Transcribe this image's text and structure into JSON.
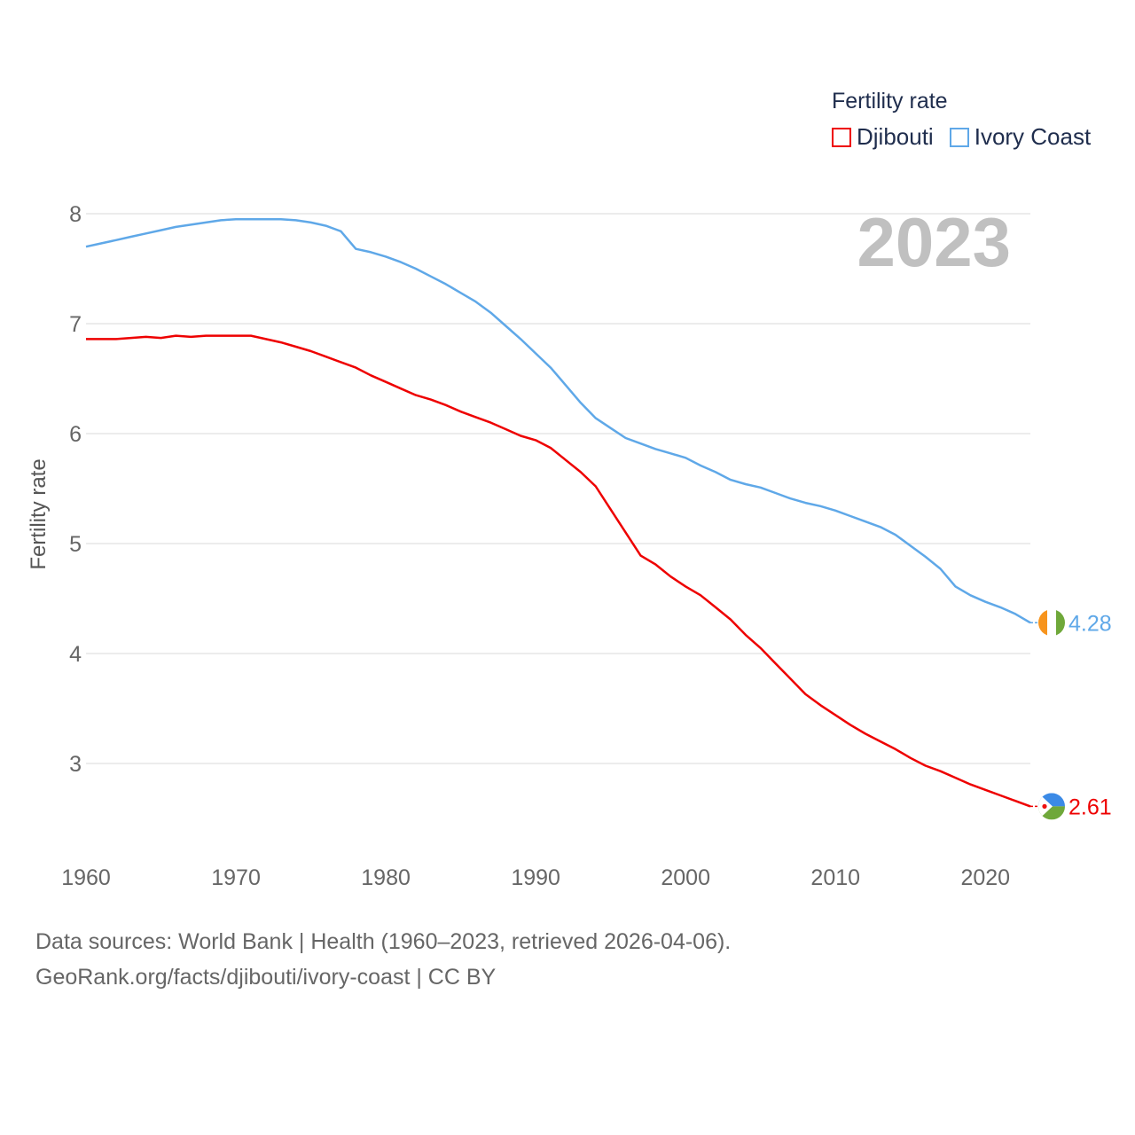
{
  "colors": {
    "djibouti": "#ee0000",
    "ivory_coast": "#5fa8e8",
    "grid": "#e6e6e6",
    "axis_text": "#666666",
    "year_text": "#c0c0c0"
  },
  "legend": {
    "title": "Fertility rate",
    "items": [
      {
        "label": "Djibouti",
        "color": "#ee0000"
      },
      {
        "label": "Ivory Coast",
        "color": "#5fa8e8"
      }
    ]
  },
  "year_label": "2023",
  "footer": {
    "line1": "Data sources: World Bank | Health (1960–2023, retrieved 2026-04-06).",
    "line2": "GeoRank.org/facts/djibouti/ivory-coast | CC BY"
  },
  "chart_data": {
    "type": "line",
    "title": "Fertility rate",
    "xlabel": "",
    "ylabel": "Fertility rate",
    "xlim": [
      1960,
      2023
    ],
    "ylim": [
      2.35,
      8.1
    ],
    "xticks": [
      1960,
      1970,
      1980,
      1990,
      2000,
      2010,
      2020
    ],
    "yticks": [
      3,
      4,
      5,
      6,
      7,
      8
    ],
    "series": [
      {
        "name": "Djibouti",
        "color": "#ee0000",
        "end_label": "2.61",
        "flag": "djibouti",
        "x": [
          1960,
          1961,
          1962,
          1963,
          1964,
          1965,
          1966,
          1967,
          1968,
          1969,
          1970,
          1971,
          1972,
          1973,
          1974,
          1975,
          1976,
          1977,
          1978,
          1979,
          1980,
          1981,
          1982,
          1983,
          1984,
          1985,
          1986,
          1987,
          1988,
          1989,
          1990,
          1991,
          1992,
          1993,
          1994,
          1995,
          1996,
          1997,
          1998,
          1999,
          2000,
          2001,
          2002,
          2003,
          2004,
          2005,
          2006,
          2007,
          2008,
          2009,
          2010,
          2011,
          2012,
          2013,
          2014,
          2015,
          2016,
          2017,
          2018,
          2019,
          2020,
          2021,
          2022,
          2023
        ],
        "y": [
          6.86,
          6.86,
          6.86,
          6.87,
          6.88,
          6.87,
          6.89,
          6.88,
          6.89,
          6.89,
          6.89,
          6.89,
          6.86,
          6.83,
          6.79,
          6.75,
          6.7,
          6.65,
          6.6,
          6.53,
          6.47,
          6.41,
          6.35,
          6.31,
          6.26,
          6.2,
          6.15,
          6.1,
          6.04,
          5.98,
          5.94,
          5.87,
          5.76,
          5.65,
          5.52,
          5.31,
          5.1,
          4.89,
          4.81,
          4.7,
          4.61,
          4.53,
          4.42,
          4.31,
          4.17,
          4.05,
          3.91,
          3.77,
          3.63,
          3.53,
          3.44,
          3.35,
          3.27,
          3.2,
          3.13,
          3.05,
          2.98,
          2.93,
          2.87,
          2.81,
          2.76,
          2.71,
          2.66,
          2.61
        ]
      },
      {
        "name": "Ivory Coast",
        "color": "#5fa8e8",
        "end_label": "4.28",
        "flag": "ivory-coast",
        "x": [
          1960,
          1961,
          1962,
          1963,
          1964,
          1965,
          1966,
          1967,
          1968,
          1969,
          1970,
          1971,
          1972,
          1973,
          1974,
          1975,
          1976,
          1977,
          1978,
          1979,
          1980,
          1981,
          1982,
          1983,
          1984,
          1985,
          1986,
          1987,
          1988,
          1989,
          1990,
          1991,
          1992,
          1993,
          1994,
          1995,
          1996,
          1997,
          1998,
          1999,
          2000,
          2001,
          2002,
          2003,
          2004,
          2005,
          2006,
          2007,
          2008,
          2009,
          2010,
          2011,
          2012,
          2013,
          2014,
          2015,
          2016,
          2017,
          2018,
          2019,
          2020,
          2021,
          2022,
          2023
        ],
        "y": [
          7.7,
          7.73,
          7.76,
          7.79,
          7.82,
          7.85,
          7.88,
          7.9,
          7.92,
          7.94,
          7.95,
          7.95,
          7.95,
          7.95,
          7.94,
          7.92,
          7.89,
          7.84,
          7.68,
          7.65,
          7.61,
          7.56,
          7.5,
          7.43,
          7.36,
          7.28,
          7.2,
          7.1,
          6.98,
          6.86,
          6.73,
          6.6,
          6.44,
          6.28,
          6.14,
          6.05,
          5.96,
          5.91,
          5.86,
          5.82,
          5.78,
          5.71,
          5.65,
          5.58,
          5.54,
          5.51,
          5.46,
          5.41,
          5.37,
          5.34,
          5.3,
          5.25,
          5.2,
          5.15,
          5.08,
          4.98,
          4.88,
          4.77,
          4.61,
          4.53,
          4.47,
          4.42,
          4.36,
          4.28
        ]
      }
    ]
  }
}
